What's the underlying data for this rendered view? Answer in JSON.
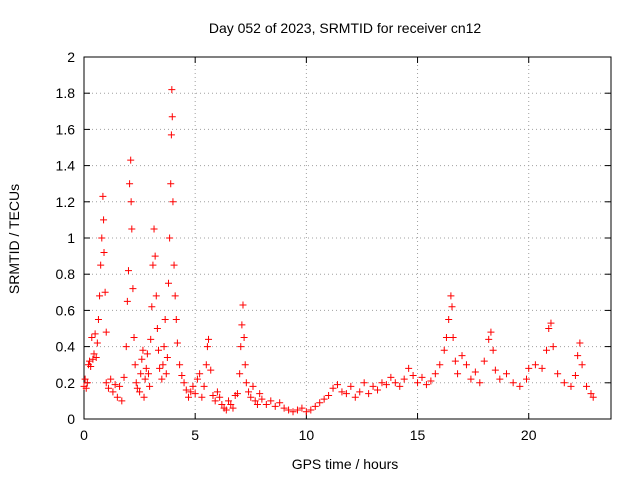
{
  "chart_data": {
    "type": "scatter",
    "title": "Day 052 of 2023, SRMTID for receiver cn12",
    "xlabel": "GPS time / hours",
    "ylabel": "SRMTID / TECUs",
    "xlim": [
      0,
      23.7
    ],
    "ylim": [
      0,
      2
    ],
    "x_ticks": [
      0,
      5,
      10,
      15,
      20
    ],
    "y_ticks": [
      0,
      0.2,
      0.4,
      0.6,
      0.8,
      1,
      1.2,
      1.4,
      1.6,
      1.8,
      2
    ],
    "x_tick_labels": [
      "0",
      "5",
      "10",
      "15",
      "20"
    ],
    "y_tick_labels": [
      "0",
      "0.2",
      "0.4",
      "0.6",
      "0.8",
      "1",
      "1.2",
      "1.4",
      "1.6",
      "1.8",
      "2"
    ],
    "grid": true,
    "marker": "+",
    "series": [
      {
        "name": "SRMTID",
        "color": "#ff0000",
        "points": [
          [
            0.0,
            0.18
          ],
          [
            0.05,
            0.22
          ],
          [
            0.1,
            0.17
          ],
          [
            0.15,
            0.2
          ],
          [
            0.2,
            0.3
          ],
          [
            0.25,
            0.32
          ],
          [
            0.3,
            0.29
          ],
          [
            0.35,
            0.45
          ],
          [
            0.4,
            0.33
          ],
          [
            0.45,
            0.36
          ],
          [
            0.5,
            0.47
          ],
          [
            0.55,
            0.34
          ],
          [
            0.6,
            0.42
          ],
          [
            0.65,
            0.55
          ],
          [
            0.7,
            0.68
          ],
          [
            0.75,
            0.85
          ],
          [
            0.8,
            1.0
          ],
          [
            0.85,
            1.23
          ],
          [
            0.88,
            1.1
          ],
          [
            0.9,
            0.92
          ],
          [
            0.95,
            0.7
          ],
          [
            1.0,
            0.48
          ],
          [
            1.0,
            0.2
          ],
          [
            1.1,
            0.17
          ],
          [
            1.2,
            0.22
          ],
          [
            1.3,
            0.15
          ],
          [
            1.4,
            0.19
          ],
          [
            1.5,
            0.12
          ],
          [
            1.6,
            0.18
          ],
          [
            1.7,
            0.1
          ],
          [
            1.8,
            0.23
          ],
          [
            1.9,
            0.4
          ],
          [
            1.95,
            0.65
          ],
          [
            2.0,
            0.82
          ],
          [
            2.05,
            1.3
          ],
          [
            2.1,
            1.43
          ],
          [
            2.12,
            1.2
          ],
          [
            2.15,
            1.05
          ],
          [
            2.2,
            0.72
          ],
          [
            2.25,
            0.45
          ],
          [
            2.3,
            0.3
          ],
          [
            2.35,
            0.2
          ],
          [
            2.4,
            0.17
          ],
          [
            2.5,
            0.15
          ],
          [
            2.55,
            0.25
          ],
          [
            2.6,
            0.33
          ],
          [
            2.65,
            0.38
          ],
          [
            2.7,
            0.12
          ],
          [
            2.75,
            0.22
          ],
          [
            2.8,
            0.28
          ],
          [
            2.85,
            0.36
          ],
          [
            2.9,
            0.25
          ],
          [
            2.95,
            0.18
          ],
          [
            3.0,
            0.44
          ],
          [
            3.05,
            0.62
          ],
          [
            3.1,
            0.85
          ],
          [
            3.15,
            1.05
          ],
          [
            3.2,
            0.9
          ],
          [
            3.25,
            0.68
          ],
          [
            3.3,
            0.5
          ],
          [
            3.35,
            0.38
          ],
          [
            3.4,
            0.28
          ],
          [
            3.5,
            0.22
          ],
          [
            3.55,
            0.3
          ],
          [
            3.6,
            0.4
          ],
          [
            3.65,
            0.55
          ],
          [
            3.7,
            0.25
          ],
          [
            3.75,
            0.34
          ],
          [
            3.8,
            0.75
          ],
          [
            3.85,
            1.0
          ],
          [
            3.9,
            1.3
          ],
          [
            3.93,
            1.57
          ],
          [
            3.95,
            1.82
          ],
          [
            3.97,
            1.67
          ],
          [
            4.0,
            1.2
          ],
          [
            4.05,
            0.85
          ],
          [
            4.1,
            0.68
          ],
          [
            4.15,
            0.55
          ],
          [
            4.2,
            0.42
          ],
          [
            4.3,
            0.3
          ],
          [
            4.4,
            0.24
          ],
          [
            4.5,
            0.2
          ],
          [
            4.6,
            0.16
          ],
          [
            4.7,
            0.12
          ],
          [
            4.8,
            0.15
          ],
          [
            4.9,
            0.18
          ],
          [
            5.0,
            0.14
          ],
          [
            5.1,
            0.22
          ],
          [
            5.2,
            0.25
          ],
          [
            5.3,
            0.12
          ],
          [
            5.4,
            0.18
          ],
          [
            5.5,
            0.3
          ],
          [
            5.55,
            0.4
          ],
          [
            5.6,
            0.44
          ],
          [
            5.7,
            0.27
          ],
          [
            5.8,
            0.13
          ],
          [
            5.9,
            0.1
          ],
          [
            6.0,
            0.15
          ],
          [
            6.1,
            0.12
          ],
          [
            6.2,
            0.08
          ],
          [
            6.3,
            0.06
          ],
          [
            6.4,
            0.05
          ],
          [
            6.5,
            0.1
          ],
          [
            6.6,
            0.08
          ],
          [
            6.7,
            0.06
          ],
          [
            6.8,
            0.13
          ],
          [
            6.9,
            0.14
          ],
          [
            7.0,
            0.25
          ],
          [
            7.05,
            0.4
          ],
          [
            7.1,
            0.52
          ],
          [
            7.15,
            0.63
          ],
          [
            7.2,
            0.45
          ],
          [
            7.25,
            0.3
          ],
          [
            7.3,
            0.2
          ],
          [
            7.4,
            0.15
          ],
          [
            7.5,
            0.12
          ],
          [
            7.6,
            0.18
          ],
          [
            7.7,
            0.1
          ],
          [
            7.8,
            0.08
          ],
          [
            7.9,
            0.14
          ],
          [
            8.0,
            0.11
          ],
          [
            8.2,
            0.08
          ],
          [
            8.4,
            0.1
          ],
          [
            8.6,
            0.07
          ],
          [
            8.8,
            0.09
          ],
          [
            9.0,
            0.06
          ],
          [
            9.2,
            0.05
          ],
          [
            9.4,
            0.04
          ],
          [
            9.6,
            0.05
          ],
          [
            9.8,
            0.06
          ],
          [
            10.0,
            0.04
          ],
          [
            10.2,
            0.05
          ],
          [
            10.4,
            0.07
          ],
          [
            10.6,
            0.09
          ],
          [
            10.8,
            0.11
          ],
          [
            11.0,
            0.13
          ],
          [
            11.2,
            0.17
          ],
          [
            11.4,
            0.19
          ],
          [
            11.6,
            0.15
          ],
          [
            11.8,
            0.14
          ],
          [
            12.0,
            0.18
          ],
          [
            12.2,
            0.12
          ],
          [
            12.4,
            0.15
          ],
          [
            12.6,
            0.2
          ],
          [
            12.8,
            0.14
          ],
          [
            13.0,
            0.18
          ],
          [
            13.2,
            0.16
          ],
          [
            13.4,
            0.2
          ],
          [
            13.6,
            0.19
          ],
          [
            13.8,
            0.23
          ],
          [
            14.0,
            0.2
          ],
          [
            14.2,
            0.18
          ],
          [
            14.4,
            0.22
          ],
          [
            14.6,
            0.28
          ],
          [
            14.8,
            0.24
          ],
          [
            15.0,
            0.2
          ],
          [
            15.2,
            0.23
          ],
          [
            15.4,
            0.19
          ],
          [
            15.6,
            0.21
          ],
          [
            15.8,
            0.25
          ],
          [
            16.0,
            0.3
          ],
          [
            16.2,
            0.38
          ],
          [
            16.3,
            0.45
          ],
          [
            16.4,
            0.55
          ],
          [
            16.5,
            0.68
          ],
          [
            16.55,
            0.62
          ],
          [
            16.6,
            0.45
          ],
          [
            16.7,
            0.32
          ],
          [
            16.8,
            0.25
          ],
          [
            17.0,
            0.35
          ],
          [
            17.2,
            0.3
          ],
          [
            17.4,
            0.22
          ],
          [
            17.6,
            0.26
          ],
          [
            17.8,
            0.2
          ],
          [
            18.0,
            0.32
          ],
          [
            18.2,
            0.44
          ],
          [
            18.3,
            0.48
          ],
          [
            18.4,
            0.38
          ],
          [
            18.5,
            0.27
          ],
          [
            18.7,
            0.22
          ],
          [
            19.0,
            0.25
          ],
          [
            19.3,
            0.2
          ],
          [
            19.6,
            0.18
          ],
          [
            19.9,
            0.22
          ],
          [
            20.0,
            0.28
          ],
          [
            20.3,
            0.3
          ],
          [
            20.6,
            0.28
          ],
          [
            20.8,
            0.38
          ],
          [
            20.9,
            0.5
          ],
          [
            21.0,
            0.53
          ],
          [
            21.1,
            0.4
          ],
          [
            21.3,
            0.25
          ],
          [
            21.6,
            0.2
          ],
          [
            21.9,
            0.18
          ],
          [
            22.1,
            0.24
          ],
          [
            22.2,
            0.35
          ],
          [
            22.3,
            0.42
          ],
          [
            22.4,
            0.3
          ],
          [
            22.6,
            0.18
          ],
          [
            22.8,
            0.14
          ],
          [
            22.9,
            0.12
          ]
        ]
      }
    ]
  }
}
